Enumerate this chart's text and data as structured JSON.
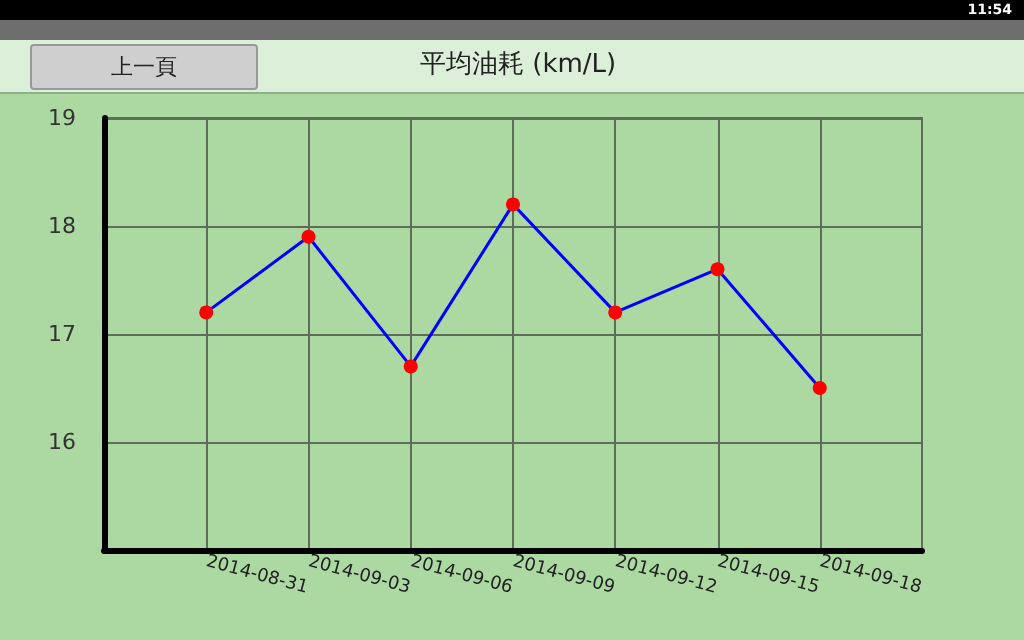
{
  "chart_data": {
    "type": "line",
    "title": "平均油耗 (km/L)",
    "x": [
      "2014-08-31",
      "2014-09-03",
      "2014-09-06",
      "2014-09-09",
      "2014-09-12",
      "2014-09-15",
      "2014-09-18"
    ],
    "series": [
      {
        "color": "#0000ff",
        "colors": [
          "#ff0000",
          "#ff0000",
          "#ff0000",
          "#ff0000",
          "#ff0000",
          "#ff0000",
          "#ff0000"
        ],
        "values": [
          17.2,
          17.9,
          16.7,
          18.2,
          17.2,
          17.6,
          16.5
        ]
      }
    ],
    "xlim": [
      "2014-08-28",
      "2014-09-21"
    ],
    "xticks": [
      "2014-08-31",
      "2014-09-03",
      "2014-09-06",
      "2014-09-09",
      "2014-09-12",
      "2014-09-15",
      "2014-09-18"
    ],
    "ylim": [
      15,
      19
    ],
    "yticks": [
      16,
      17,
      18,
      19
    ],
    "grid": true,
    "marker": "circle",
    "line_style": "solid",
    "annotations": [
      "11:54",
      "上一頁"
    ]
  }
}
